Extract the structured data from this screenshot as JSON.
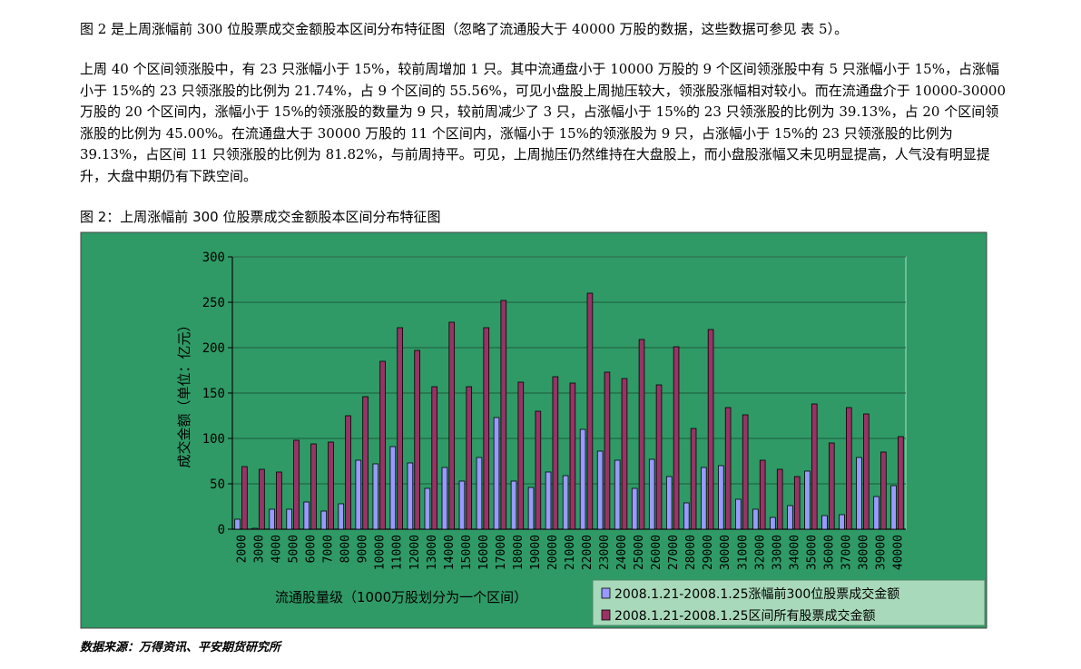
{
  "intro": "图 2 是上周涨幅前 300 位股票成交金额股本区间分布特征图（忽略了流通股大于 40000 万股的数据，这些数据可参见 表 5）。",
  "body": "上周 40 个区间领涨股中，有 23 只涨幅小于 15%，较前周增加 1 只。其中流通盘小于 10000 万股的 9 个区间领涨股中有 5 只涨幅小于 15%，占涨幅小于 15%的 23 只领涨股的比例为 21.74%，占 9 个区间的 55.56%，可见小盘股上周抛压较大，领涨股涨幅相对较小。而在流通盘介于 10000-30000 万股的 20 个区间内，涨幅小于 15%的领涨股的数量为 9 只，较前周减少了 3 只，占涨幅小于 15%的 23 只领涨股的比例为 39.13%，占 20 个区间领涨股的比例为 45.00%。在流通盘大于 30000 万股的 11 个区间内，涨幅小于 15%的领涨股为 9 只，占涨幅小于 15%的 23 只领涨股的比例为 39.13%，占区间 11 只领涨股的比例为 81.82%，与前周持平。可见，上周抛压仍然维持在大盘股上，而小盘股涨幅又未见明显提高，人气没有明显提升，大盘中期仍有下跌空间。",
  "figure_title": "图 2：上周涨幅前 300 位股票成交金额股本区间分布特征图",
  "source": "数据来源：万得资讯、平安期货研究所",
  "colors": {
    "plot_bg": "#2f9a66",
    "frame": "#9ad7b2",
    "series1": "#9999ff",
    "series2": "#993366",
    "grid": "#1e5a3c"
  },
  "chart_data": {
    "type": "bar",
    "title": "",
    "xlabel": "流通股量级（1000万股划分为一个区间）",
    "ylabel": "成交金额（单位：亿元）",
    "ylim": [
      0,
      300
    ],
    "yticks": [
      0,
      50,
      100,
      150,
      200,
      250,
      300
    ],
    "grid": true,
    "legend_position": "bottom-right",
    "categories": [
      "2000",
      "3000",
      "4000",
      "5000",
      "6000",
      "7000",
      "8000",
      "9000",
      "10000",
      "11000",
      "12000",
      "13000",
      "14000",
      "15000",
      "16000",
      "17000",
      "18000",
      "19000",
      "20000",
      "21000",
      "22000",
      "23000",
      "24000",
      "25000",
      "26000",
      "27000",
      "28000",
      "29000",
      "30000",
      "31000",
      "32000",
      "33000",
      "34000",
      "35000",
      "36000",
      "37000",
      "38000",
      "39000",
      "40000"
    ],
    "series": [
      {
        "name": "2008.1.21-2008.1.25涨幅前300位股票成交金额",
        "values": [
          11,
          1,
          22,
          22,
          30,
          20,
          28,
          76,
          72,
          91,
          73,
          45,
          68,
          53,
          79,
          123,
          53,
          46,
          63,
          59,
          110,
          86,
          76,
          45,
          77,
          58,
          29,
          68,
          70,
          33,
          22,
          13,
          26,
          64,
          15,
          16,
          79,
          36,
          48
        ]
      },
      {
        "name": "2008.1.21-2008.1.25区间所有股票成交金额",
        "values": [
          69,
          66,
          63,
          98,
          94,
          96,
          125,
          146,
          185,
          222,
          197,
          157,
          228,
          157,
          222,
          252,
          162,
          130,
          168,
          161,
          260,
          173,
          166,
          209,
          159,
          201,
          111,
          220,
          134,
          126,
          76,
          66,
          58,
          138,
          95,
          134,
          127,
          85,
          102
        ]
      }
    ]
  }
}
